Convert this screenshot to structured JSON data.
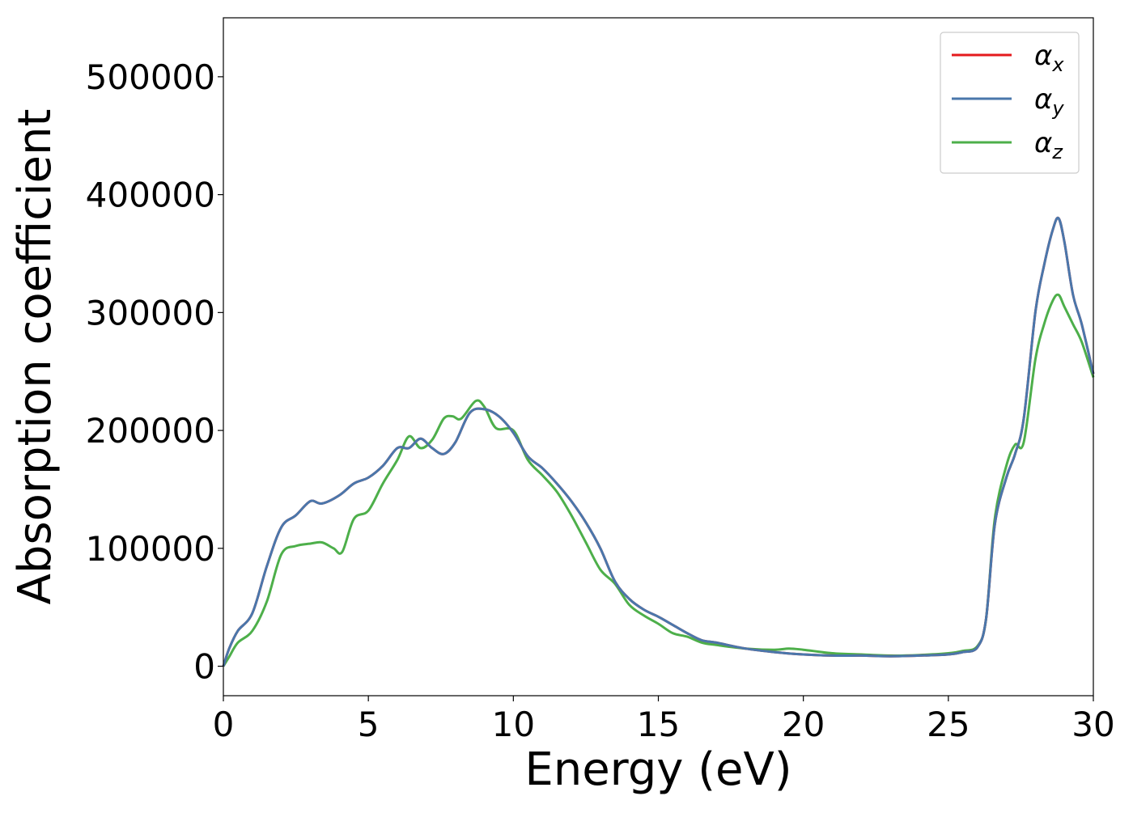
{
  "chart_data": {
    "type": "line",
    "title": "",
    "xlabel": "Energy (eV)",
    "ylabel": "Absorption coefficient",
    "xlim": [
      0,
      30
    ],
    "ylim": [
      -25000,
      550000
    ],
    "xticks": [
      0,
      5,
      10,
      15,
      20,
      25,
      30
    ],
    "yticks": [
      0,
      100000,
      200000,
      300000,
      400000,
      500000
    ],
    "grid": false,
    "legend_position": "top-right",
    "series": [
      {
        "name": "αx",
        "legend_base": "α",
        "legend_sub": "x",
        "color": "#e41a1c",
        "x": [
          0,
          0.2,
          0.5,
          1.0,
          1.5,
          2.0,
          2.5,
          3.0,
          3.4,
          4.0,
          4.5,
          5.0,
          5.5,
          6.0,
          6.4,
          6.8,
          7.2,
          7.6,
          8.0,
          8.5,
          9.0,
          9.5,
          10.0,
          10.5,
          11.0,
          11.5,
          12.0,
          12.5,
          13.0,
          13.5,
          14.0,
          14.5,
          15.0,
          15.5,
          16.0,
          16.5,
          17.0,
          18.0,
          19.0,
          20.0,
          21.0,
          22.0,
          23.0,
          24.0,
          25.0,
          25.5,
          26.0,
          26.3,
          26.6,
          27.0,
          27.3,
          27.6,
          28.0,
          28.3,
          28.6,
          28.8,
          29.0,
          29.3,
          29.6,
          30.0
        ],
        "y": [
          0,
          15000,
          30000,
          45000,
          85000,
          118000,
          128000,
          140000,
          138000,
          145000,
          155000,
          160000,
          170000,
          185000,
          185000,
          193000,
          185000,
          180000,
          190000,
          215000,
          218000,
          212000,
          198000,
          178000,
          168000,
          155000,
          140000,
          122000,
          100000,
          72000,
          57000,
          48000,
          42000,
          35000,
          28000,
          22000,
          20000,
          15000,
          12000,
          10000,
          9000,
          9000,
          8500,
          9000,
          10000,
          12000,
          16000,
          40000,
          120000,
          160000,
          180000,
          210000,
          300000,
          340000,
          370000,
          380000,
          360000,
          315000,
          290000,
          248000
        ]
      },
      {
        "name": "αy",
        "legend_base": "α",
        "legend_sub": "y",
        "color": "#4a77ab",
        "x": [
          0,
          0.2,
          0.5,
          1.0,
          1.5,
          2.0,
          2.5,
          3.0,
          3.4,
          4.0,
          4.5,
          5.0,
          5.5,
          6.0,
          6.4,
          6.8,
          7.2,
          7.6,
          8.0,
          8.5,
          9.0,
          9.5,
          10.0,
          10.5,
          11.0,
          11.5,
          12.0,
          12.5,
          13.0,
          13.5,
          14.0,
          14.5,
          15.0,
          15.5,
          16.0,
          16.5,
          17.0,
          18.0,
          19.0,
          20.0,
          21.0,
          22.0,
          23.0,
          24.0,
          25.0,
          25.5,
          26.0,
          26.3,
          26.6,
          27.0,
          27.3,
          27.6,
          28.0,
          28.3,
          28.6,
          28.8,
          29.0,
          29.3,
          29.6,
          30.0
        ],
        "y": [
          0,
          15000,
          30000,
          45000,
          85000,
          118000,
          128000,
          140000,
          138000,
          145000,
          155000,
          160000,
          170000,
          185000,
          185000,
          193000,
          185000,
          180000,
          190000,
          215000,
          218000,
          212000,
          198000,
          178000,
          168000,
          155000,
          140000,
          122000,
          100000,
          72000,
          57000,
          48000,
          42000,
          35000,
          28000,
          22000,
          20000,
          15000,
          12000,
          10000,
          9000,
          9000,
          8500,
          9000,
          10000,
          12000,
          16000,
          40000,
          120000,
          160000,
          180000,
          210000,
          300000,
          340000,
          370000,
          380000,
          360000,
          315000,
          290000,
          248000
        ]
      },
      {
        "name": "αz",
        "legend_base": "α",
        "legend_sub": "z",
        "color": "#4daf4a",
        "x": [
          0,
          0.2,
          0.5,
          1.0,
          1.5,
          2.0,
          2.5,
          3.0,
          3.4,
          3.8,
          4.1,
          4.5,
          5.0,
          5.5,
          6.0,
          6.4,
          6.8,
          7.2,
          7.6,
          7.9,
          8.2,
          8.7,
          9.0,
          9.4,
          10.0,
          10.5,
          11.0,
          11.5,
          12.0,
          12.5,
          13.0,
          13.5,
          14.0,
          14.5,
          15.0,
          15.5,
          16.0,
          16.5,
          17.0,
          18.0,
          19.0,
          19.5,
          20.0,
          21.0,
          22.0,
          23.0,
          24.0,
          25.0,
          25.5,
          26.0,
          26.3,
          26.6,
          27.0,
          27.3,
          27.6,
          28.0,
          28.3,
          28.6,
          28.8,
          29.0,
          29.3,
          29.6,
          30.0
        ],
        "y": [
          0,
          8000,
          20000,
          30000,
          55000,
          95000,
          102000,
          104000,
          105000,
          100000,
          97000,
          125000,
          132000,
          155000,
          175000,
          195000,
          185000,
          192000,
          210000,
          212000,
          210000,
          225000,
          220000,
          202000,
          200000,
          175000,
          162000,
          148000,
          128000,
          105000,
          82000,
          70000,
          52000,
          43000,
          36000,
          28000,
          25000,
          20000,
          18000,
          15000,
          14000,
          15000,
          14000,
          11000,
          10000,
          9000,
          9500,
          11000,
          13000,
          17000,
          40000,
          125000,
          170000,
          188000,
          190000,
          260000,
          290000,
          310000,
          315000,
          305000,
          290000,
          275000,
          245000
        ]
      }
    ]
  }
}
